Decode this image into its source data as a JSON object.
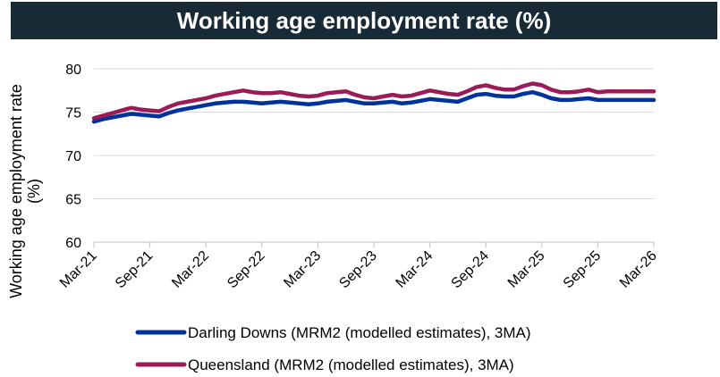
{
  "chart_data": {
    "type": "line",
    "title": "Working age employment rate (%)",
    "ylabel_lines": [
      "Working age employment rate",
      "(%)"
    ],
    "xlabel": "",
    "ylim": [
      60,
      80
    ],
    "yticks": [
      60,
      65,
      70,
      75,
      80
    ],
    "grid": true,
    "legend_position": "bottom",
    "xtick_labels": [
      "Mar-21",
      "Sep-21",
      "Mar-22",
      "Sep-22",
      "Mar-23",
      "Sep-23",
      "Mar-24",
      "Sep-24",
      "Mar-25",
      "Sep-25",
      "Mar-26"
    ],
    "series": [
      {
        "name": "Darling Downs (MRM2 (modelled estimates), 3MA)",
        "color": "#00329b",
        "values": [
          73.9,
          74.2,
          74.4,
          74.6,
          74.8,
          74.7,
          74.6,
          74.5,
          74.9,
          75.2,
          75.4,
          75.6,
          75.8,
          76.0,
          76.1,
          76.2,
          76.2,
          76.1,
          76.0,
          76.1,
          76.2,
          76.1,
          76.0,
          75.9,
          76.0,
          76.2,
          76.3,
          76.4,
          76.2,
          76.0,
          76.0,
          76.1,
          76.2,
          76.0,
          76.1,
          76.3,
          76.5,
          76.4,
          76.3,
          76.2,
          76.6,
          77.0,
          77.1,
          76.9,
          76.8,
          76.8,
          77.1,
          77.3,
          77.0,
          76.6,
          76.4,
          76.4,
          76.5,
          76.6,
          76.4,
          76.4,
          76.4,
          76.4,
          76.4,
          76.4,
          76.4
        ]
      },
      {
        "name": "Queensland (MRM2 (modelled estimates), 3MA)",
        "color": "#9b1b56",
        "values": [
          74.3,
          74.6,
          74.9,
          75.2,
          75.5,
          75.3,
          75.2,
          75.1,
          75.6,
          76.0,
          76.2,
          76.4,
          76.6,
          76.9,
          77.1,
          77.3,
          77.5,
          77.3,
          77.2,
          77.2,
          77.3,
          77.1,
          76.9,
          76.8,
          76.9,
          77.2,
          77.3,
          77.4,
          77.0,
          76.7,
          76.6,
          76.8,
          77.0,
          76.8,
          76.9,
          77.2,
          77.5,
          77.3,
          77.1,
          77.0,
          77.4,
          77.9,
          78.1,
          77.8,
          77.6,
          77.6,
          78.0,
          78.3,
          78.1,
          77.6,
          77.3,
          77.3,
          77.4,
          77.6,
          77.3,
          77.4,
          77.4,
          77.4,
          77.4,
          77.4,
          77.4
        ]
      }
    ]
  }
}
